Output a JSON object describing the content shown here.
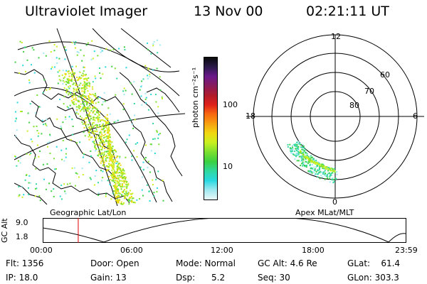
{
  "header": {
    "instrument": "Ultraviolet Imager",
    "date": "13 Nov 00",
    "time": "02:21:11 UT"
  },
  "geo_map": {
    "label": "Geographic Lat/Lon"
  },
  "colorbar": {
    "label": "photon cm⁻²s⁻¹",
    "ticks": [
      "100",
      "10"
    ],
    "colors": [
      "#0a0a0a",
      "#2a1a4a",
      "#6a1a8a",
      "#8a1a5a",
      "#b01a2a",
      "#e0201a",
      "#f86a10",
      "#f8a010",
      "#f0d810",
      "#c8f020",
      "#7ae030",
      "#3cd040",
      "#30d8a0",
      "#28d8e0",
      "#a0e8f0",
      "#e8f8f8"
    ]
  },
  "polar_plot": {
    "label": "Apex MLat/MLT",
    "mlt_labels": {
      "top": "12",
      "left": "18",
      "right": "6",
      "bottom": "0"
    },
    "lat_labels": [
      "60",
      "70",
      "80"
    ]
  },
  "timeline": {
    "y_label": "GC Alt",
    "y_ticks": [
      "9.0",
      "1.8"
    ],
    "x_ticks": [
      "00:00",
      "06:00",
      "12:00",
      "18:00",
      "23:59"
    ],
    "current_time_hours": 2.35
  },
  "status": {
    "flt": "Flt: 1356",
    "ip": "IP: 18.0",
    "door": "Door: Open",
    "gain": "Gain: 13",
    "mode": "Mode: Normal",
    "dsp": "Dsp:      5.2",
    "gc_alt": "GC Alt: 4.6 Re",
    "seq": "Seq: 30",
    "glat": "GLat:    61.4",
    "glon": "GLon: 303.3"
  }
}
